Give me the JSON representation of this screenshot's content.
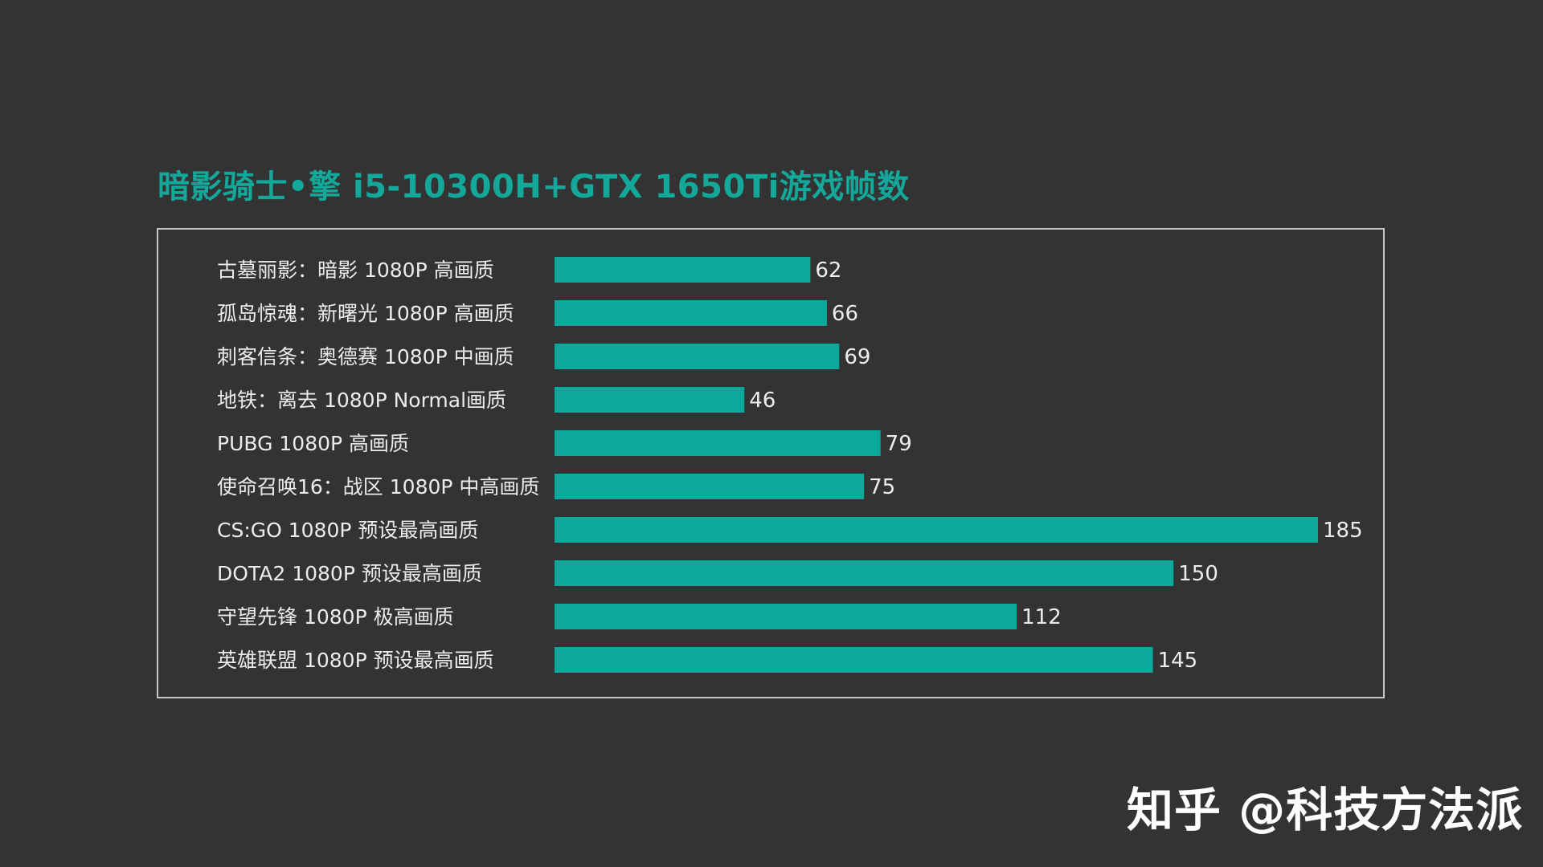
{
  "chart_data": {
    "type": "bar",
    "orientation": "horizontal",
    "title": "暗影骑士•擎 i5-10300H+GTX 1650Ti游戏帧数",
    "categories": [
      "古墓丽影：暗影 1080P 高画质",
      "孤岛惊魂：新曙光 1080P 高画质",
      "刺客信条：奥德赛 1080P 中画质",
      "地铁：离去 1080P Normal画质",
      "PUBG 1080P 高画质",
      "使命召唤16：战区 1080P 中高画质",
      "CS:GO 1080P 预设最高画质",
      "DOTA2 1080P 预设最高画质",
      "守望先锋 1080P 极高画质",
      "英雄联盟 1080P 预设最高画质"
    ],
    "values": [
      62,
      66,
      69,
      46,
      79,
      75,
      185,
      150,
      112,
      145
    ],
    "xlim": [
      0,
      185
    ],
    "grid": false,
    "legend": "none",
    "bar_color": "#0aa99c",
    "text_color": "#ececec",
    "title_color": "#14a89b",
    "background": "#333333",
    "frame_color": "#c9c9c9"
  },
  "watermark": {
    "text": "知乎 @科技方法派"
  }
}
